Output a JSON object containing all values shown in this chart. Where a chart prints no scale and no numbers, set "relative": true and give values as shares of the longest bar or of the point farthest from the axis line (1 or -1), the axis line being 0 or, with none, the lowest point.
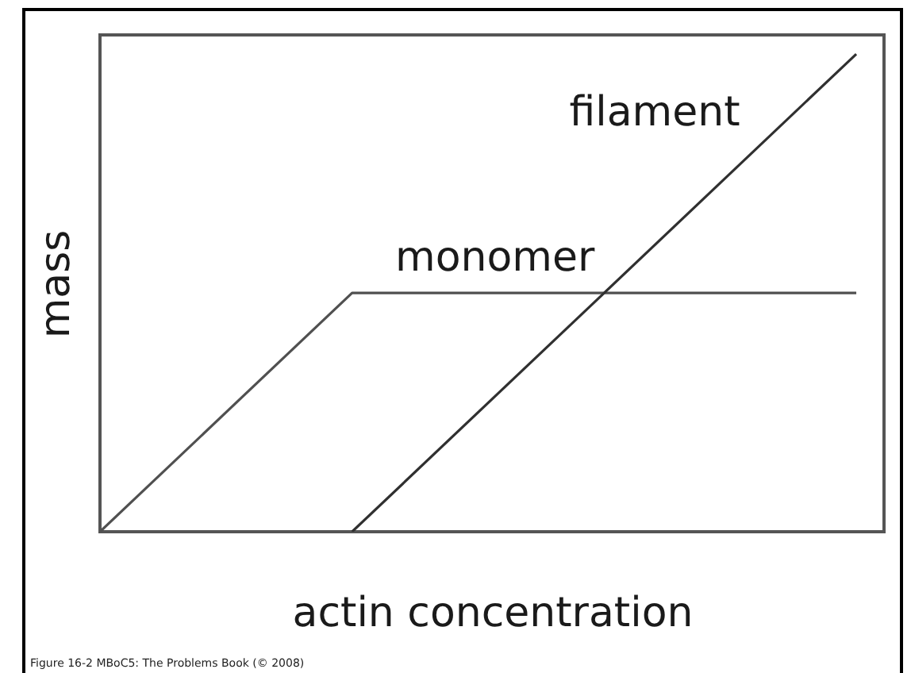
{
  "chart_data": {
    "type": "line",
    "relative": true,
    "xlabel": "actin concentration",
    "ylabel": "mass",
    "categories": [
      null,
      null,
      null,
      null
    ],
    "series": [
      {
        "name": "monomer",
        "color": "#505050",
        "values": [
          0,
          0.5,
          0.5,
          0.5
        ]
      },
      {
        "name": "filament",
        "color": "#303030",
        "values": [
          null,
          0,
          0.5,
          1
        ]
      }
    ],
    "annotations": [
      "Figure 16-2 MBoC5: The Problems Book (© 2008)"
    ]
  }
}
